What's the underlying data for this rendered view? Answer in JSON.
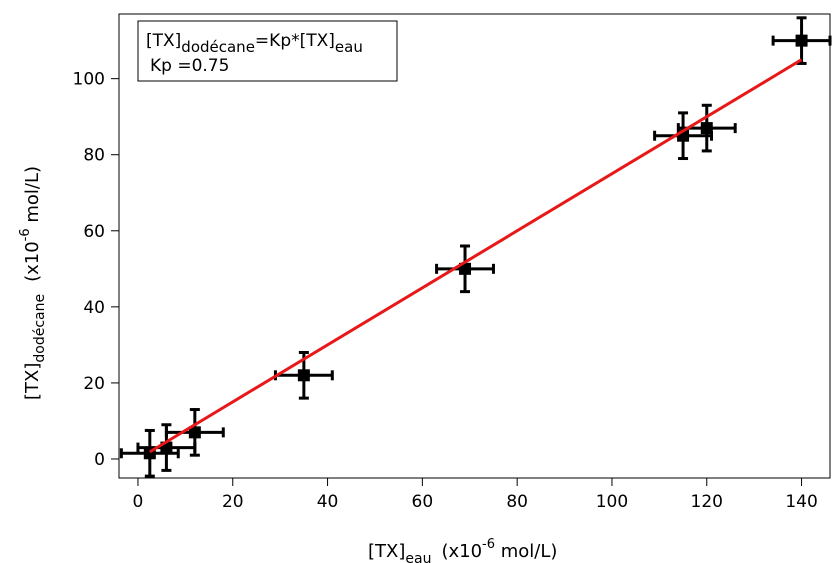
{
  "chart_data": {
    "type": "scatter",
    "xlabel": {
      "main": "[TX]",
      "sub": "eau",
      "unit_prefix": "(x10",
      "unit_exp": "-6",
      "unit_suffix": " mol/L)"
    },
    "ylabel": {
      "main": "[TX]",
      "sub": "dodécane",
      "unit_prefix": "(x10",
      "unit_exp": "-6",
      "unit_suffix": " mol/L)"
    },
    "xlim": [
      -4,
      146
    ],
    "ylim": [
      -5,
      117
    ],
    "xticks": [
      0,
      20,
      40,
      60,
      80,
      100,
      120,
      140
    ],
    "yticks": [
      0,
      20,
      40,
      60,
      80,
      100
    ],
    "grid": false,
    "legend_position": "top-left",
    "legend": {
      "line1": {
        "a": "[TX]",
        "a_sub": "dodécane",
        "mid": "=Kp*[TX]",
        "b_sub": "eau"
      },
      "line2": "Kp =0.75"
    },
    "series": [
      {
        "kind": "points",
        "color": "#000000",
        "points": [
          {
            "x": 2.5,
            "y": 1.5,
            "xerr": 6,
            "yerr": 6
          },
          {
            "x": 6,
            "y": 3,
            "xerr": 6,
            "yerr": 6
          },
          {
            "x": 12,
            "y": 7,
            "xerr": 6,
            "yerr": 6
          },
          {
            "x": 35,
            "y": 22,
            "xerr": 6,
            "yerr": 6
          },
          {
            "x": 69,
            "y": 50,
            "xerr": 6,
            "yerr": 6
          },
          {
            "x": 115,
            "y": 85,
            "xerr": 6,
            "yerr": 6
          },
          {
            "x": 120,
            "y": 87,
            "xerr": 6,
            "yerr": 6
          },
          {
            "x": 140,
            "y": 110,
            "xerr": 6,
            "yerr": 6
          }
        ]
      },
      {
        "kind": "fit",
        "color": "#e81818",
        "x": [
          2.5,
          140
        ],
        "y": [
          1.875,
          105
        ]
      }
    ]
  }
}
